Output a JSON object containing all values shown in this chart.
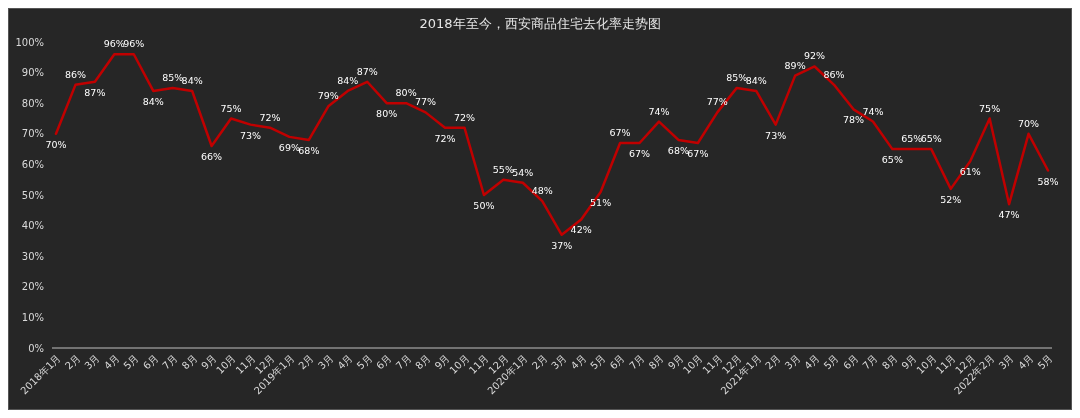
{
  "chart_data": {
    "type": "line",
    "title": "2018年至今，西安商品住宅去化率走势图",
    "categories": [
      "2018年1月",
      "2月",
      "3月",
      "4月",
      "5月",
      "6月",
      "7月",
      "8月",
      "9月",
      "10月",
      "11月",
      "12月",
      "2019年1月",
      "2月",
      "3月",
      "4月",
      "5月",
      "6月",
      "7月",
      "8月",
      "9月",
      "10月",
      "11月",
      "12月",
      "2020年1月",
      "2月",
      "3月",
      "4月",
      "5月",
      "6月",
      "7月",
      "8月",
      "9月",
      "10月",
      "11月",
      "12月",
      "2021年1月",
      "2月",
      "3月",
      "4月",
      "5月",
      "6月",
      "7月",
      "8月",
      "9月",
      "10月",
      "11月",
      "12月",
      "2022年2月",
      "3月",
      "4月",
      "5月"
    ],
    "series": [
      {
        "color": "#c00000",
        "values": [
          70,
          86,
          87,
          96,
          96,
          84,
          85,
          84,
          66,
          75,
          73,
          72,
          69,
          68,
          79,
          84,
          87,
          80,
          80,
          77,
          72,
          72,
          50,
          55,
          54,
          48,
          37,
          42,
          51,
          67,
          67,
          74,
          68,
          67,
          77,
          85,
          84,
          73,
          89,
          92,
          86,
          78,
          74,
          65,
          65,
          65,
          52,
          61,
          75,
          47,
          70,
          58
        ]
      }
    ],
    "ylim": [
      0,
      100
    ],
    "yticks": [
      {
        "value": 0,
        "label": "0%"
      },
      {
        "value": 10,
        "label": "10%"
      },
      {
        "value": 20,
        "label": "20%"
      },
      {
        "value": 30,
        "label": "30%"
      },
      {
        "value": 40,
        "label": "40%"
      },
      {
        "value": 50,
        "label": "50%"
      },
      {
        "value": 60,
        "label": "60%"
      },
      {
        "value": 70,
        "label": "70%"
      },
      {
        "value": 80,
        "label": "80%"
      },
      {
        "value": 90,
        "label": "90%"
      },
      {
        "value": 100,
        "label": "100%"
      }
    ],
    "value_labels": [
      "70%",
      "86%",
      "87%",
      "96%",
      "96%",
      "84%",
      "85%",
      "84%",
      "66%",
      "75%",
      "73%",
      "72%",
      "69%",
      "68%",
      "79%",
      "84%",
      "87%",
      "80%",
      "80%",
      "77%",
      "72%",
      "72%",
      "50%",
      "55%",
      "54%",
      "48%",
      "37%",
      "42%",
      "51%",
      "67%",
      "67%",
      "74%",
      "68%",
      "67%",
      "77%",
      "85%",
      "84%",
      "73%",
      "89%",
      "92%",
      "86%",
      "78%",
      "74%",
      "65%",
      "65%",
      "65%",
      "52%",
      "61%",
      "75%",
      "47%",
      "70%",
      "58%"
    ],
    "grid": false,
    "line_style": "solid"
  }
}
